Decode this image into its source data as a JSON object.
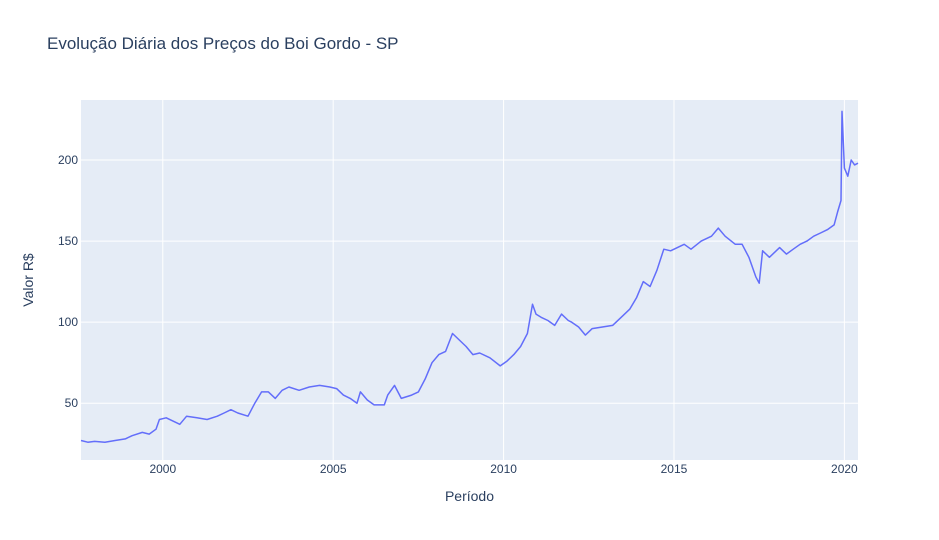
{
  "chart_data": {
    "type": "line",
    "title": "Evolução Diária dos Preços do Boi Gordo - SP",
    "xlabel": "Período",
    "ylabel": "Valor R$",
    "xlim": [
      1997.6,
      2020.4
    ],
    "ylim": [
      15,
      237
    ],
    "x_ticks": [
      2000,
      2005,
      2010,
      2015,
      2020
    ],
    "x_tick_labels": [
      "2000",
      "2005",
      "2010",
      "2015",
      "2020"
    ],
    "y_ticks": [
      50,
      100,
      150,
      200
    ],
    "y_tick_labels": [
      "50",
      "100",
      "150",
      "200"
    ],
    "grid": true,
    "colors": {
      "line": "#636efa",
      "plot_bg": "#e5ecf6",
      "grid": "#ffffff",
      "text": "#2a3f5f"
    },
    "series": [
      {
        "x": [
          1997.6,
          1997.8,
          1998.0,
          1998.3,
          1998.6,
          1998.9,
          1999.1,
          1999.4,
          1999.6,
          1999.8,
          1999.9,
          2000.1,
          2000.3,
          2000.5,
          2000.7,
          2001.0,
          2001.3,
          2001.6,
          2001.8,
          2002.0,
          2002.2,
          2002.5,
          2002.7,
          2002.9,
          2003.1,
          2003.3,
          2003.5,
          2003.7,
          2004.0,
          2004.3,
          2004.6,
          2004.9,
          2005.1,
          2005.3,
          2005.5,
          2005.7,
          2005.8,
          2006.0,
          2006.2,
          2006.5,
          2006.6,
          2006.8,
          2007.0,
          2007.3,
          2007.5,
          2007.7,
          2007.9,
          2008.1,
          2008.3,
          2008.5,
          2008.7,
          2008.9,
          2009.1,
          2009.3,
          2009.6,
          2009.9,
          2010.1,
          2010.3,
          2010.5,
          2010.7,
          2010.85,
          2010.95,
          2011.1,
          2011.3,
          2011.5,
          2011.7,
          2011.9,
          2012.0,
          2012.2,
          2012.4,
          2012.6,
          2012.9,
          2013.2,
          2013.5,
          2013.7,
          2013.9,
          2014.1,
          2014.3,
          2014.5,
          2014.7,
          2014.9,
          2015.1,
          2015.3,
          2015.5,
          2015.8,
          2016.1,
          2016.3,
          2016.5,
          2016.8,
          2017.0,
          2017.2,
          2017.4,
          2017.5,
          2017.6,
          2017.8,
          2018.1,
          2018.3,
          2018.5,
          2018.7,
          2018.9,
          2019.1,
          2019.3,
          2019.5,
          2019.7,
          2019.8,
          2019.9,
          2019.93,
          2020.0,
          2020.1,
          2020.2,
          2020.3,
          2020.4
        ],
        "values": [
          27,
          26,
          26.5,
          26,
          27,
          28,
          30,
          32,
          31,
          34,
          40,
          41,
          39,
          37,
          42,
          41,
          40,
          42,
          44,
          46,
          44,
          42,
          50,
          57,
          57,
          53,
          58,
          60,
          58,
          60,
          61,
          60,
          59,
          55,
          53,
          50,
          57,
          52,
          49,
          49,
          55,
          61,
          53,
          55,
          57,
          65,
          75,
          80,
          82,
          93,
          89,
          85,
          80,
          81,
          78,
          73,
          76,
          80,
          85,
          93,
          111,
          105,
          103,
          101,
          98,
          105,
          101,
          100,
          97,
          92,
          96,
          97,
          98,
          104,
          108,
          115,
          125,
          122,
          132,
          145,
          144,
          146,
          148,
          145,
          150,
          153,
          158,
          153,
          148,
          148,
          140,
          128,
          124,
          144,
          140,
          146,
          142,
          145,
          148,
          150,
          153,
          155,
          157,
          160,
          168,
          175,
          230,
          195,
          190,
          200,
          197,
          198
        ]
      }
    ]
  }
}
